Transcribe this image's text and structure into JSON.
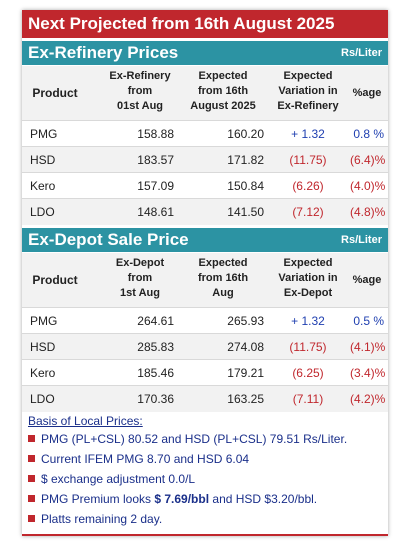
{
  "banner": "Next Projected from 16th August 2025",
  "refinery": {
    "title": "Ex-Refinery Prices",
    "unit": "Rs/Liter",
    "headers": {
      "product": "Product",
      "col1": [
        "Ex-Refinery",
        "from",
        "01st Aug"
      ],
      "col2": [
        "Expected",
        "from 16th",
        "August 2025"
      ],
      "col3": [
        "Expected",
        "Variation in",
        "Ex-Refinery"
      ],
      "col4": "%age"
    },
    "rows": [
      {
        "product": "PMG",
        "current": "158.88",
        "expected": "160.20",
        "variation": "+ 1.32",
        "pct": "0.8 %"
      },
      {
        "product": "HSD",
        "current": "183.57",
        "expected": "171.82",
        "variation": "(11.75)",
        "pct": "(6.4)%"
      },
      {
        "product": "Kero",
        "current": "157.09",
        "expected": "150.84",
        "variation": "(6.26)",
        "pct": "(4.0)%"
      },
      {
        "product": "LDO",
        "current": "148.61",
        "expected": "141.50",
        "variation": "(7.12)",
        "pct": "(4.8)%"
      }
    ]
  },
  "depot": {
    "title": "Ex-Depot Sale Price",
    "unit": "Rs/Liter",
    "headers": {
      "product": "Product",
      "col1": [
        "Ex-Depot",
        "from",
        "1st Aug"
      ],
      "col2": [
        "Expected",
        "from 16th",
        "Aug"
      ],
      "col3": [
        "Expected",
        "Variation in",
        "Ex-Depot"
      ],
      "col4": "%age"
    },
    "rows": [
      {
        "product": "PMG",
        "current": "264.61",
        "expected": "265.93",
        "variation": "+ 1.32",
        "pct": "0.5 %"
      },
      {
        "product": "HSD",
        "current": "285.83",
        "expected": "274.08",
        "variation": "(11.75)",
        "pct": "(4.1)%"
      },
      {
        "product": "Kero",
        "current": "185.46",
        "expected": "179.21",
        "variation": "(6.25)",
        "pct": "(3.4)%"
      },
      {
        "product": "LDO",
        "current": "170.36",
        "expected": "163.25",
        "variation": "(7.11)",
        "pct": "(4.2)%"
      }
    ]
  },
  "basis": {
    "title": "Basis of Local Prices:",
    "notes": [
      "PMG (PL+CSL) 80.52 and HSD (PL+CSL) 79.51 Rs/Liter.",
      "Current IFEM PMG 8.70 and HSD 6.04",
      "$ exchange adjustment 0.0/L",
      {
        "before": "PMG Premium looks ",
        "bold": "$ 7.69/bbl",
        "after": " and HSD $3.20/bbl."
      },
      "Platts remaining 2 day."
    ]
  },
  "colors": {
    "banner": "#c0272d",
    "section": "#2c93a3",
    "positive": "#1f3fb0",
    "negative": "#c0272d"
  }
}
